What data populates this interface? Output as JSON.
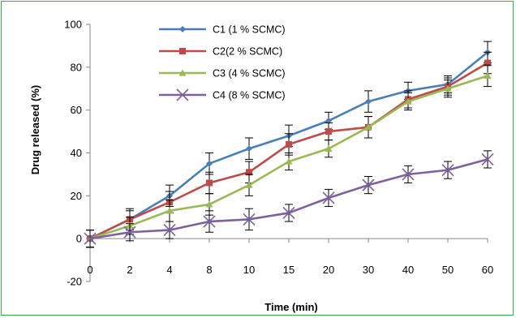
{
  "chart_data": {
    "type": "line",
    "xlabel": "Time (min)",
    "ylabel": "Drug released (%)",
    "categories": [
      "0",
      "2",
      "4",
      "8",
      "10",
      "15",
      "20",
      "30",
      "40",
      "50",
      "60"
    ],
    "ylim": [
      -20,
      100
    ],
    "yticks": [
      -20,
      0,
      20,
      40,
      60,
      80,
      100
    ],
    "grid": false,
    "legend_position": "top-center",
    "series": [
      {
        "name": "C1 (1 % SCMC)",
        "color": "#4a7ebb",
        "marker": "diamond",
        "values": [
          0,
          9,
          20,
          35,
          42,
          48,
          55,
          64,
          69,
          72,
          87
        ],
        "errors": [
          4,
          4,
          5,
          5,
          5,
          5,
          4,
          5,
          4,
          4,
          5
        ]
      },
      {
        "name": "C2(2 % SCMC)",
        "color": "#be4b48",
        "marker": "square",
        "values": [
          0,
          9,
          17,
          26,
          31,
          44,
          50,
          52,
          65,
          71,
          82
        ],
        "errors": [
          4,
          5,
          5,
          5,
          5,
          5,
          4,
          5,
          4,
          4,
          5
        ]
      },
      {
        "name": "C3 (4 % SCMC)",
        "color": "#98b954",
        "marker": "triangle",
        "values": [
          0,
          6,
          13,
          16,
          25,
          36,
          42,
          52,
          64,
          70,
          76
        ],
        "errors": [
          4,
          4,
          5,
          5,
          5,
          4,
          4,
          5,
          4,
          4,
          5
        ]
      },
      {
        "name": "C4 (8 % SCMC)",
        "color": "#7d60a0",
        "marker": "x",
        "values": [
          0,
          3,
          4,
          8,
          9,
          12,
          19,
          25,
          30,
          32,
          37
        ],
        "errors": [
          4,
          4,
          4,
          5,
          5,
          4,
          4,
          4,
          4,
          4,
          4
        ]
      }
    ]
  }
}
